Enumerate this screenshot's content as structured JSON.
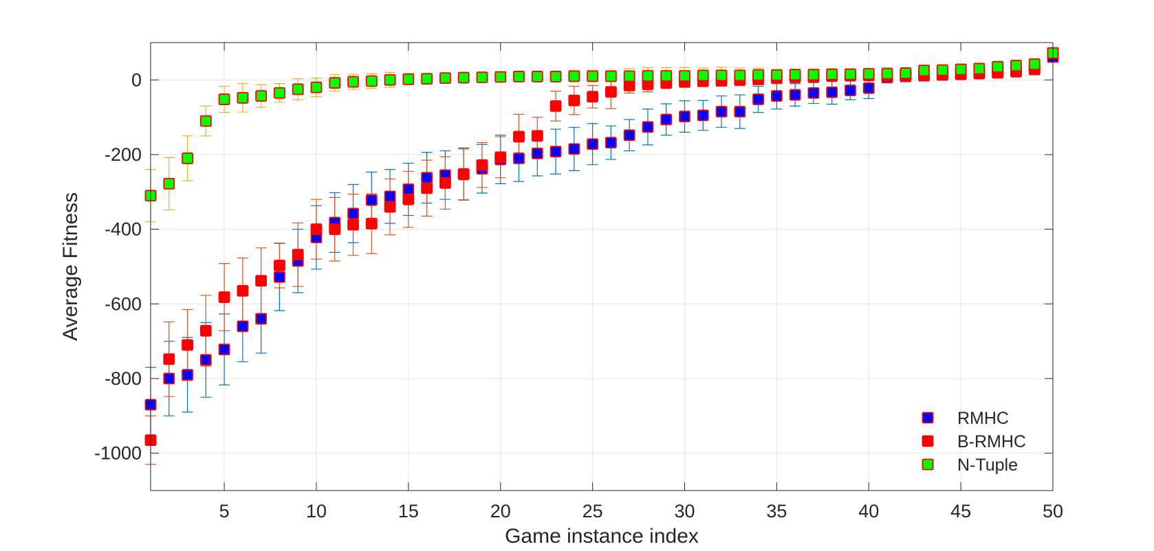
{
  "chart_data": {
    "type": "scatter",
    "title": "",
    "xlabel": "Game instance index",
    "ylabel": "Average Fitness",
    "xlim": [
      1,
      50
    ],
    "ylim": [
      -1100,
      100
    ],
    "xticks": [
      5,
      10,
      15,
      20,
      25,
      30,
      35,
      40,
      45,
      50
    ],
    "yticks": [
      -1000,
      -800,
      -600,
      -400,
      -200,
      0
    ],
    "xtick_labels": [
      "5",
      "10",
      "15",
      "20",
      "25",
      "30",
      "35",
      "40",
      "45",
      "50"
    ],
    "ytick_labels": [
      "-1000",
      "-800",
      "-600",
      "-400",
      "-200",
      "0"
    ],
    "grid": true,
    "legend_position": "bottom-right",
    "x": [
      1,
      2,
      3,
      4,
      5,
      6,
      7,
      8,
      9,
      10,
      11,
      12,
      13,
      14,
      15,
      16,
      17,
      18,
      19,
      20,
      21,
      22,
      23,
      24,
      25,
      26,
      27,
      28,
      29,
      30,
      31,
      32,
      33,
      34,
      35,
      36,
      37,
      38,
      39,
      40,
      41,
      42,
      43,
      44,
      45,
      46,
      47,
      48,
      49,
      50
    ],
    "series": [
      {
        "name": "RMHC",
        "marker_fill": "#0000ff",
        "marker_edge": "#ff0000",
        "error_color": "#0072bd",
        "values": [
          -870,
          -800,
          -790,
          -750,
          -722,
          -660,
          -640,
          -528,
          -485,
          -422,
          -382,
          -358,
          -322,
          -312,
          -293,
          -262,
          -255,
          -252,
          -238,
          -213,
          -210,
          -197,
          -192,
          -185,
          -172,
          -168,
          -148,
          -126,
          -106,
          -98,
          -95,
          -85,
          -85,
          -52,
          -43,
          -40,
          -35,
          -33,
          -28,
          -22,
          7,
          10,
          12,
          14,
          16,
          18,
          20,
          24,
          28,
          62
        ],
        "errors": [
          100,
          100,
          100,
          100,
          95,
          95,
          92,
          90,
          85,
          85,
          80,
          78,
          75,
          72,
          70,
          68,
          65,
          70,
          65,
          65,
          62,
          60,
          60,
          58,
          55,
          45,
          42,
          48,
          42,
          42,
          40,
          42,
          45,
          35,
          35,
          30,
          28,
          32,
          25,
          28,
          15,
          15,
          15,
          15,
          15,
          12,
          12,
          12,
          12,
          15
        ]
      },
      {
        "name": "B-RMHC",
        "marker_fill": "#ff0000",
        "marker_edge": "#ff0000",
        "error_color": "#d95319",
        "values": [
          -965,
          -748,
          -710,
          -672,
          -582,
          -565,
          -538,
          -497,
          -468,
          -400,
          -400,
          -388,
          -385,
          -340,
          -320,
          -290,
          -276,
          -253,
          -228,
          -207,
          -152,
          -150,
          -70,
          -55,
          -45,
          -32,
          -15,
          -12,
          -8,
          -5,
          -3,
          -2,
          0,
          2,
          5,
          7,
          8,
          10,
          12,
          12,
          12,
          12,
          13,
          14,
          15,
          17,
          19,
          22,
          28,
          72
        ],
        "errors": [
          65,
          100,
          95,
          95,
          90,
          88,
          88,
          60,
          85,
          80,
          85,
          82,
          80,
          75,
          75,
          75,
          70,
          68,
          60,
          55,
          60,
          50,
          40,
          38,
          30,
          45,
          20,
          20,
          15,
          15,
          15,
          15,
          15,
          15,
          15,
          12,
          12,
          12,
          12,
          12,
          12,
          12,
          12,
          12,
          12,
          12,
          12,
          12,
          12,
          12
        ]
      },
      {
        "name": "N-Tuple",
        "marker_fill": "#00ff00",
        "marker_edge": "#ff0000",
        "error_color": "#edb120",
        "values": [
          -310,
          -278,
          -210,
          -110,
          -52,
          -48,
          -43,
          -35,
          -25,
          -20,
          -8,
          -5,
          -3,
          0,
          2,
          3,
          5,
          6,
          7,
          8,
          9,
          9,
          9,
          10,
          10,
          10,
          10,
          11,
          11,
          11,
          12,
          12,
          12,
          13,
          13,
          14,
          14,
          15,
          15,
          16,
          17,
          18,
          25,
          26,
          28,
          30,
          35,
          38,
          42,
          72
        ],
        "errors": [
          70,
          70,
          60,
          40,
          35,
          38,
          30,
          25,
          28,
          25,
          22,
          20,
          20,
          20,
          15,
          12,
          12,
          12,
          12,
          12,
          12,
          12,
          12,
          15,
          15,
          15,
          20,
          22,
          22,
          22,
          20,
          22,
          20,
          18,
          15,
          15,
          15,
          15,
          15,
          15,
          15,
          15,
          15,
          15,
          15,
          15,
          15,
          15,
          15,
          15
        ]
      }
    ]
  }
}
